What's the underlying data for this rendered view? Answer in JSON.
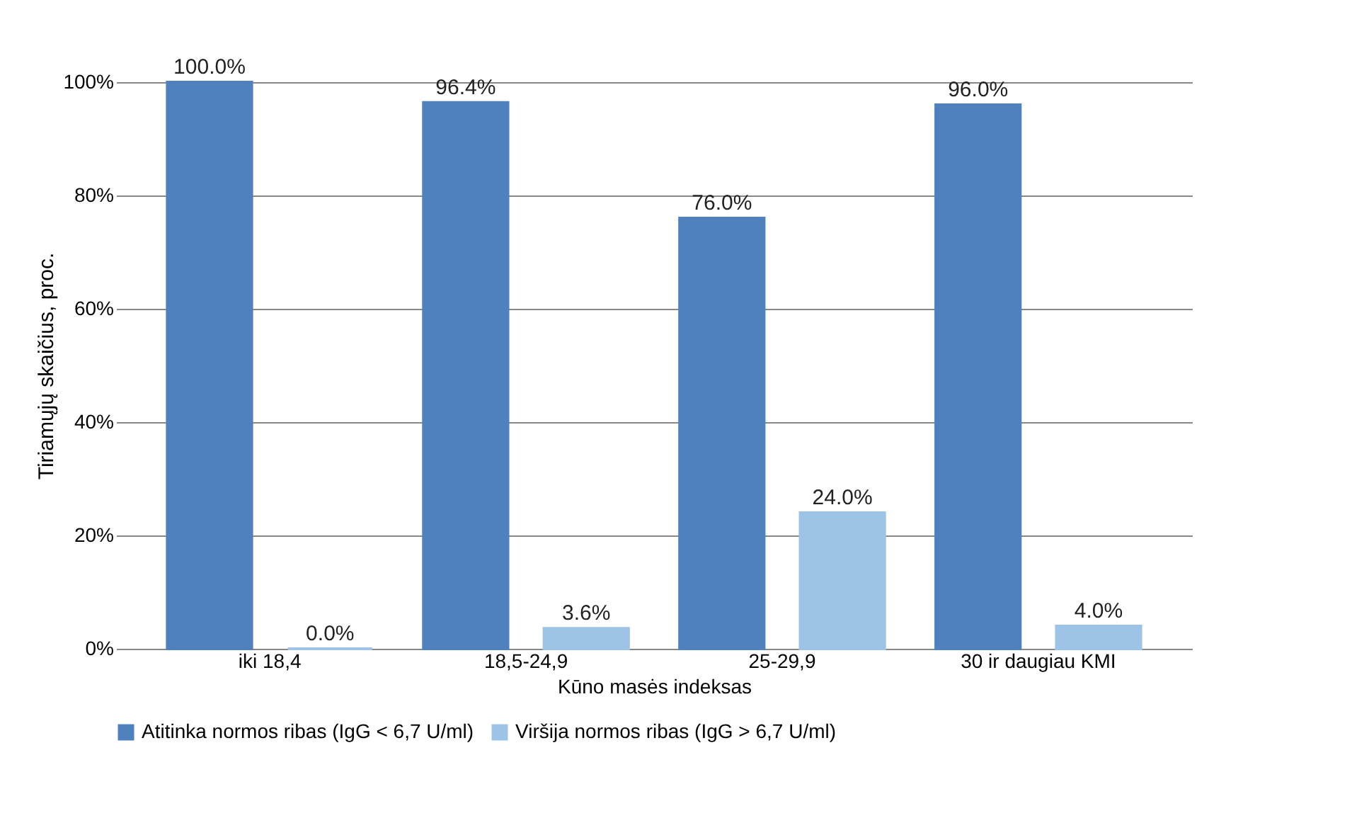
{
  "chart_data": {
    "type": "bar",
    "xlabel": "Kūno masės indeksas",
    "ylabel": "Tiriamųjų skaičius, proc.",
    "categories": [
      "iki 18,4",
      "18,5-24,9",
      "25-29,9",
      "30 ir daugiau KMI"
    ],
    "series": [
      {
        "name": "Atitinka normos ribas (IgG < 6,7 U/ml)",
        "color": "#4f81bd",
        "values": [
          100,
          96.4,
          76,
          96
        ],
        "value_labels": [
          "100.0%",
          "96.4%",
          "76.0%",
          "96.0%"
        ]
      },
      {
        "name": "Viršija normos ribas (IgG > 6,7 U/ml)",
        "color": "#9dc3e6",
        "values": [
          0,
          3.6,
          24,
          4
        ],
        "value_labels": [
          "0.0%",
          "3.6%",
          "24.0%",
          "4.0%"
        ]
      }
    ],
    "ylim": [
      0,
      100
    ],
    "yticks": [
      {
        "value": 0,
        "label": "0%"
      },
      {
        "value": 20,
        "label": "20%"
      },
      {
        "value": 40,
        "label": "40%"
      },
      {
        "value": 60,
        "label": "60%"
      },
      {
        "value": 80,
        "label": "80%"
      },
      {
        "value": 100,
        "label": "100%"
      }
    ],
    "grid": "y",
    "legend": "bottom"
  }
}
